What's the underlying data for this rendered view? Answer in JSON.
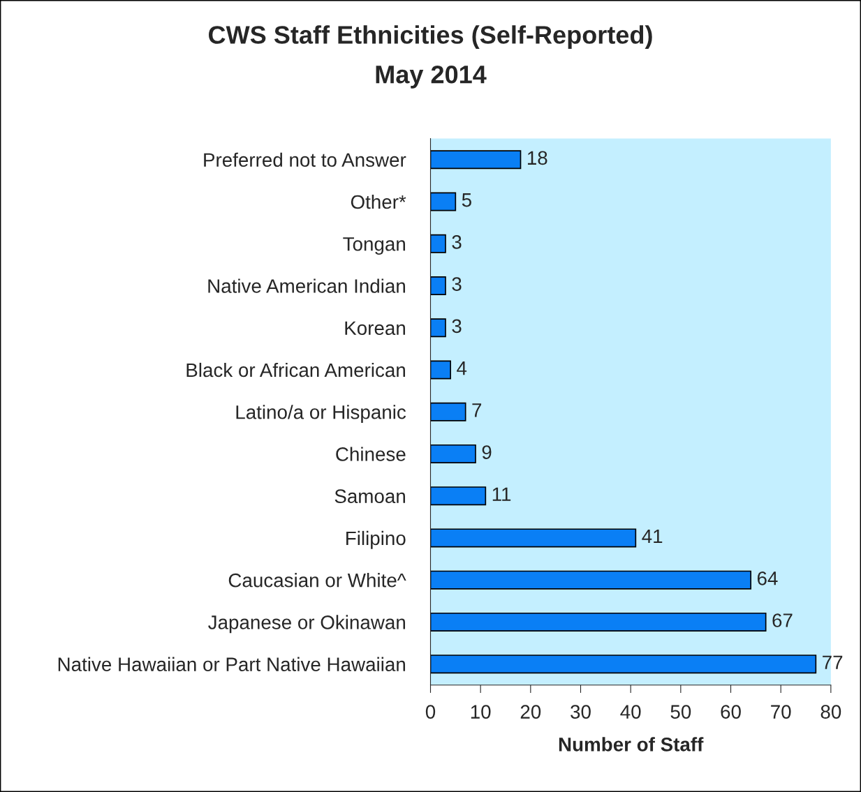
{
  "chart_data": {
    "type": "bar",
    "orientation": "horizontal",
    "title": "CWS Staff Ethnicities (Self-Reported)",
    "subtitle": "May 2014",
    "xlabel": "Number of Staff",
    "categories": [
      "Preferred not to Answer",
      "Other*",
      "Tongan",
      "Native American Indian",
      "Korean",
      "Black or African American",
      "Latino/a or Hispanic",
      "Chinese",
      "Samoan",
      "Filipino",
      "Caucasian or White^",
      "Japanese or Okinawan",
      "Native Hawaiian or Part Native Hawaiian"
    ],
    "values": [
      18,
      5,
      3,
      3,
      3,
      4,
      7,
      9,
      11,
      41,
      64,
      67,
      77
    ],
    "color": "#0a7ff5",
    "xlim": [
      0,
      80
    ],
    "xticks": [
      0,
      10,
      20,
      30,
      40,
      50,
      60,
      70,
      80
    ],
    "grid": false,
    "data_labels": true
  }
}
